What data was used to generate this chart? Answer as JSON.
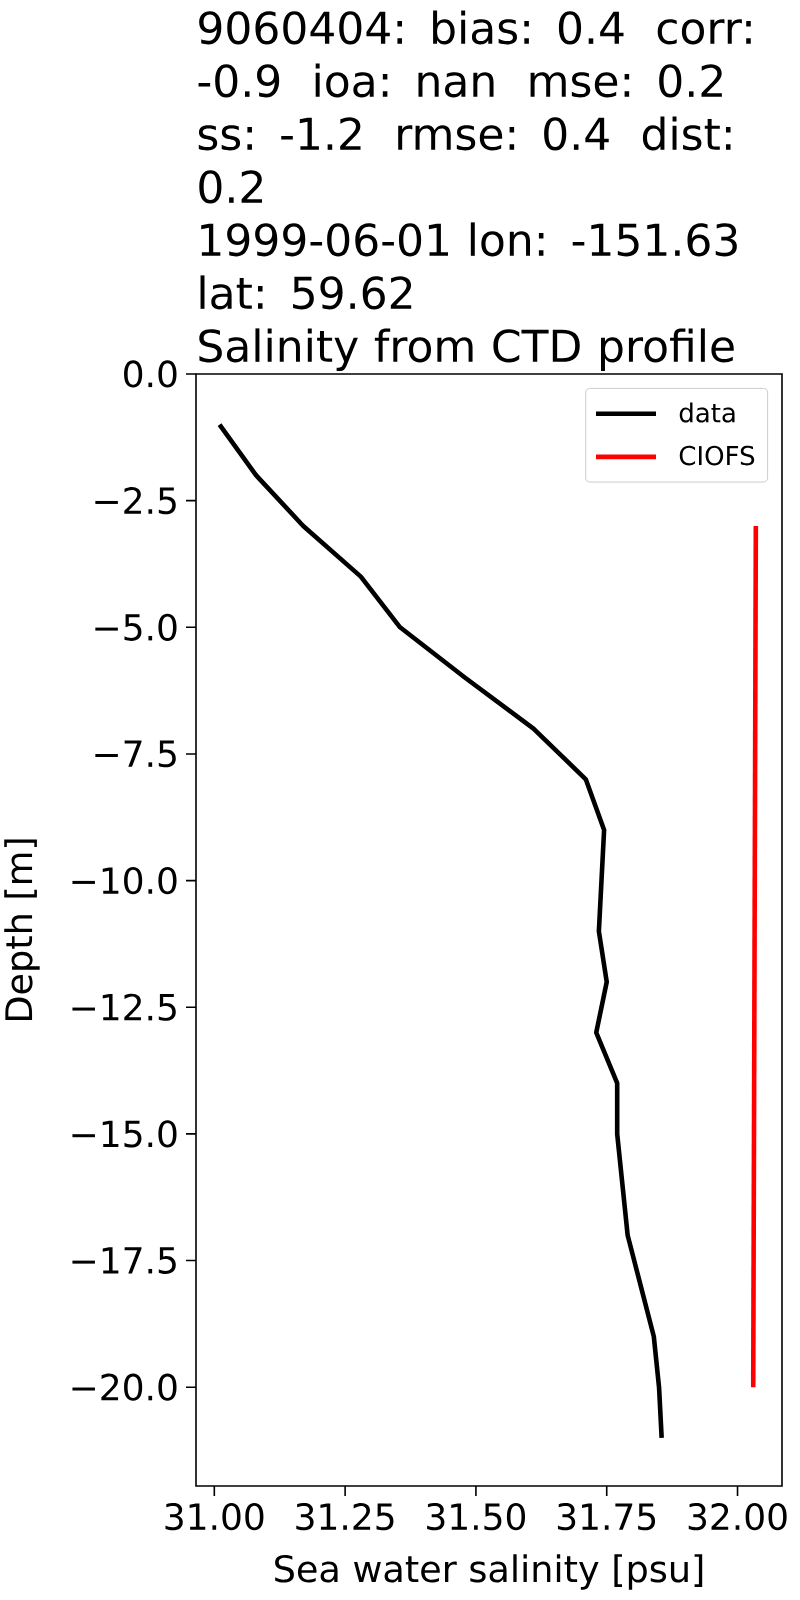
{
  "chart_data": {
    "type": "line",
    "annotations": [
      "9060404: bias: 0.4  corr: -0.9  ioa: nan  mse: 0.2  ss: -1.2  rmse: 0.4  dist: 0.2",
      "1999-06-01 lon: -151.63 lat: 59.62"
    ],
    "title": "Salinity from CTD profile",
    "xlabel": "Sea water salinity [psu]",
    "ylabel": "Depth [m]",
    "xlim": [
      30.965,
      32.085
    ],
    "ylim": [
      -21.95,
      0
    ],
    "xticks": [
      {
        "value": 31.0,
        "label": "31.00"
      },
      {
        "value": 31.25,
        "label": "31.25"
      },
      {
        "value": 31.5,
        "label": "31.50"
      },
      {
        "value": 31.75,
        "label": "31.75"
      },
      {
        "value": 32.0,
        "label": "32.00"
      }
    ],
    "yticks": [
      {
        "value": 0,
        "label": "0.0"
      },
      {
        "value": -2.5,
        "label": "−2.5"
      },
      {
        "value": -5,
        "label": "−5.0"
      },
      {
        "value": -7.5,
        "label": "−7.5"
      },
      {
        "value": -10,
        "label": "−10.0"
      },
      {
        "value": -12.5,
        "label": "−12.5"
      },
      {
        "value": -15,
        "label": "−15.0"
      },
      {
        "value": -17.5,
        "label": "−17.5"
      },
      {
        "value": -20,
        "label": "−20.0"
      }
    ],
    "legend": "top right",
    "series": [
      {
        "name": "data",
        "color": "#000000",
        "x": [
          31.01,
          31.08,
          31.17,
          31.28,
          31.355,
          31.48,
          31.61,
          31.71,
          31.745,
          31.74,
          31.735,
          31.75,
          31.73,
          31.77,
          31.77,
          31.78,
          31.79,
          31.815,
          31.84,
          31.85,
          31.855
        ],
        "values": [
          -1,
          -2,
          -3,
          -4,
          -5,
          -6,
          -7,
          -8,
          -9,
          -10,
          -11,
          -12,
          -13,
          -14,
          -15,
          -16,
          -17,
          -18,
          -19,
          -20,
          -21
        ]
      },
      {
        "name": "CIOFS",
        "color": "#ff0000",
        "x": [
          32.035,
          32.03
        ],
        "values": [
          -3,
          -20
        ]
      }
    ]
  }
}
